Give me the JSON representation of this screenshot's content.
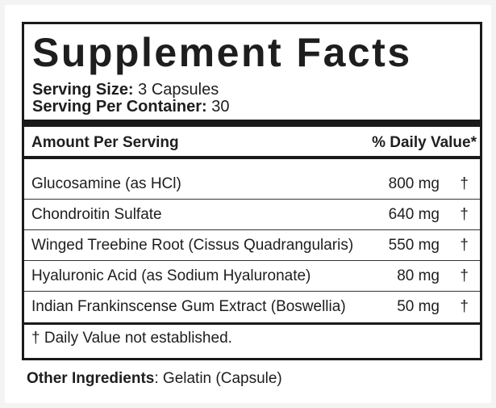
{
  "title": "Supplement Facts",
  "serving_size": {
    "label": "Serving Size:",
    "value": "3 Capsules"
  },
  "servings_per_container": {
    "label": "Serving Per Container:",
    "value": "30"
  },
  "table": {
    "header": {
      "amount": "Amount Per Serving",
      "daily_value": "% Daily Value*"
    },
    "rows": [
      [
        "Glucosamine (as HCl)",
        "800 mg",
        "†"
      ],
      [
        "Chondroitin Sulfate",
        "640 mg",
        "†"
      ],
      [
        "Winged Treebine Root (Cissus Quadrangularis)",
        "550 mg",
        "†"
      ],
      [
        "Hyaluronic Acid (as Sodium Hyaluronate)",
        "80 mg",
        "†"
      ],
      [
        "Indian Frankinscense Gum Extract (Boswellia)",
        "50 mg",
        "†"
      ]
    ]
  },
  "footnote": "† Daily Value not established.",
  "other_ingredients": {
    "label": "Other Ingredients",
    "value": ": Gelatin (Capsule)"
  }
}
